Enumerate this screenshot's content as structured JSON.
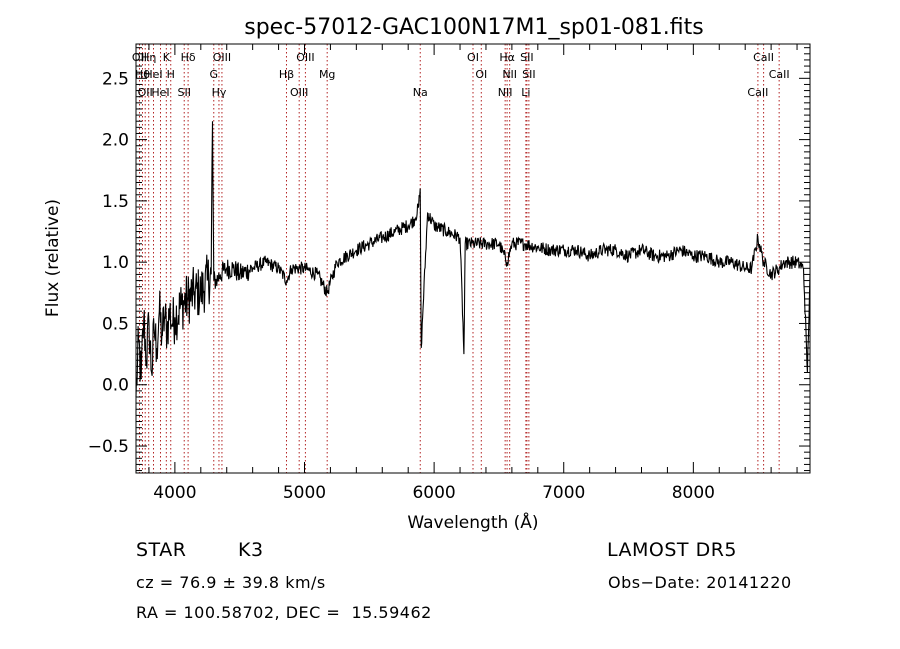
{
  "chart_data": {
    "type": "line",
    "title": "spec-57012-GAC100N17M1_sp01-081.fits",
    "xlabel": "Wavelength (Å)",
    "ylabel": "Flux (relative)",
    "xlim": [
      3700,
      8900
    ],
    "ylim": [
      -0.72,
      2.78
    ],
    "x_ticks": [
      4000,
      5000,
      6000,
      7000,
      8000
    ],
    "y_ticks": [
      -0.5,
      0.0,
      0.5,
      1.0,
      1.5,
      2.0,
      2.5
    ],
    "x_tick_labels": [
      "4000",
      "5000",
      "6000",
      "7000",
      "8000"
    ],
    "y_tick_labels": [
      "−0.5",
      "0.0",
      "0.5",
      "1.0",
      "1.5",
      "2.0",
      "2.5"
    ],
    "line_color": "#000000",
    "marker_line_color": "#b22222",
    "series": [
      {
        "x": [
          3700,
          3720,
          3740,
          3760,
          3780,
          3800,
          3820,
          3840,
          3860,
          3880,
          3900,
          3920,
          3940,
          3960,
          3980,
          4000,
          4050,
          4100,
          4150,
          4200,
          4250,
          4280,
          4290,
          4300,
          4320,
          4350,
          4400,
          4450,
          4500,
          4600,
          4700,
          4800,
          4861,
          4900,
          5000,
          5100,
          5175,
          5250,
          5400,
          5500,
          5600,
          5700,
          5800,
          5850,
          5880,
          5893,
          5900,
          5950,
          6000,
          6100,
          6200,
          6230,
          6240,
          6300,
          6400,
          6500,
          6563,
          6600,
          6700,
          6800,
          6900,
          7000,
          7100,
          7200,
          7300,
          7400,
          7500,
          7600,
          7700,
          7800,
          7900,
          8000,
          8100,
          8200,
          8300,
          8400,
          8450,
          8498,
          8542,
          8600,
          8662,
          8700,
          8800,
          8850,
          8880,
          8900
        ],
        "y": [
          -0.1,
          0.35,
          0.05,
          0.55,
          0.2,
          0.5,
          0.1,
          0.45,
          0.3,
          0.6,
          0.4,
          0.55,
          0.45,
          0.6,
          0.5,
          0.55,
          0.65,
          0.7,
          0.75,
          0.75,
          0.85,
          0.9,
          2.15,
          0.85,
          0.85,
          0.9,
          0.95,
          0.95,
          0.9,
          0.95,
          1.0,
          0.95,
          0.85,
          0.95,
          0.95,
          0.9,
          0.75,
          1.0,
          1.1,
          1.15,
          1.2,
          1.25,
          1.3,
          1.35,
          1.45,
          1.6,
          0.3,
          1.4,
          1.3,
          1.25,
          1.2,
          0.25,
          1.15,
          1.15,
          1.15,
          1.15,
          1.0,
          1.15,
          1.15,
          1.12,
          1.1,
          1.1,
          1.1,
          1.05,
          1.1,
          1.1,
          1.05,
          1.1,
          1.05,
          1.05,
          1.1,
          1.05,
          1.05,
          1.0,
          1.0,
          0.95,
          0.95,
          1.2,
          1.0,
          0.9,
          0.95,
          1.0,
          1.0,
          0.95,
          0.1,
          0.9
        ]
      }
    ],
    "line_markers": [
      {
        "wavelength": 3727,
        "label": "OII"
      },
      {
        "wavelength": 3750,
        "label": "Hθ"
      },
      {
        "wavelength": 3771,
        "label": "OII"
      },
      {
        "wavelength": 3798,
        "label": "Hη"
      },
      {
        "wavelength": 3835,
        "label": "HeI"
      },
      {
        "wavelength": 3889,
        "label": "HeI"
      },
      {
        "wavelength": 3934,
        "label": "K"
      },
      {
        "wavelength": 3968,
        "label": "H"
      },
      {
        "wavelength": 4072,
        "label": "SII"
      },
      {
        "wavelength": 4102,
        "label": "Hδ"
      },
      {
        "wavelength": 4300,
        "label": "G"
      },
      {
        "wavelength": 4340,
        "label": "Hγ"
      },
      {
        "wavelength": 4363,
        "label": "OIII"
      },
      {
        "wavelength": 4861,
        "label": "Hβ"
      },
      {
        "wavelength": 4959,
        "label": "OIII"
      },
      {
        "wavelength": 5007,
        "label": "OIII"
      },
      {
        "wavelength": 5175,
        "label": "Mg"
      },
      {
        "wavelength": 5893,
        "label": "Na"
      },
      {
        "wavelength": 6300,
        "label": "OI"
      },
      {
        "wavelength": 6364,
        "label": "OI"
      },
      {
        "wavelength": 6548,
        "label": "NII"
      },
      {
        "wavelength": 6563,
        "label": "Hα"
      },
      {
        "wavelength": 6583,
        "label": "NII"
      },
      {
        "wavelength": 6708,
        "label": "Li"
      },
      {
        "wavelength": 6716,
        "label": "SII"
      },
      {
        "wavelength": 6731,
        "label": "SII"
      },
      {
        "wavelength": 8498,
        "label": "CaII"
      },
      {
        "wavelength": 8542,
        "label": "CaII"
      },
      {
        "wavelength": 8662,
        "label": "CaII"
      }
    ]
  },
  "footer": {
    "object_class": "STAR",
    "subclass": "K3",
    "survey": "LAMOST DR5",
    "redshift_text": "cz = 76.9 ± 39.8 km/s",
    "obs_date_text": "Obs−Date: 20141220",
    "coords_text": "RA = 100.58702, DEC =  15.59462"
  }
}
